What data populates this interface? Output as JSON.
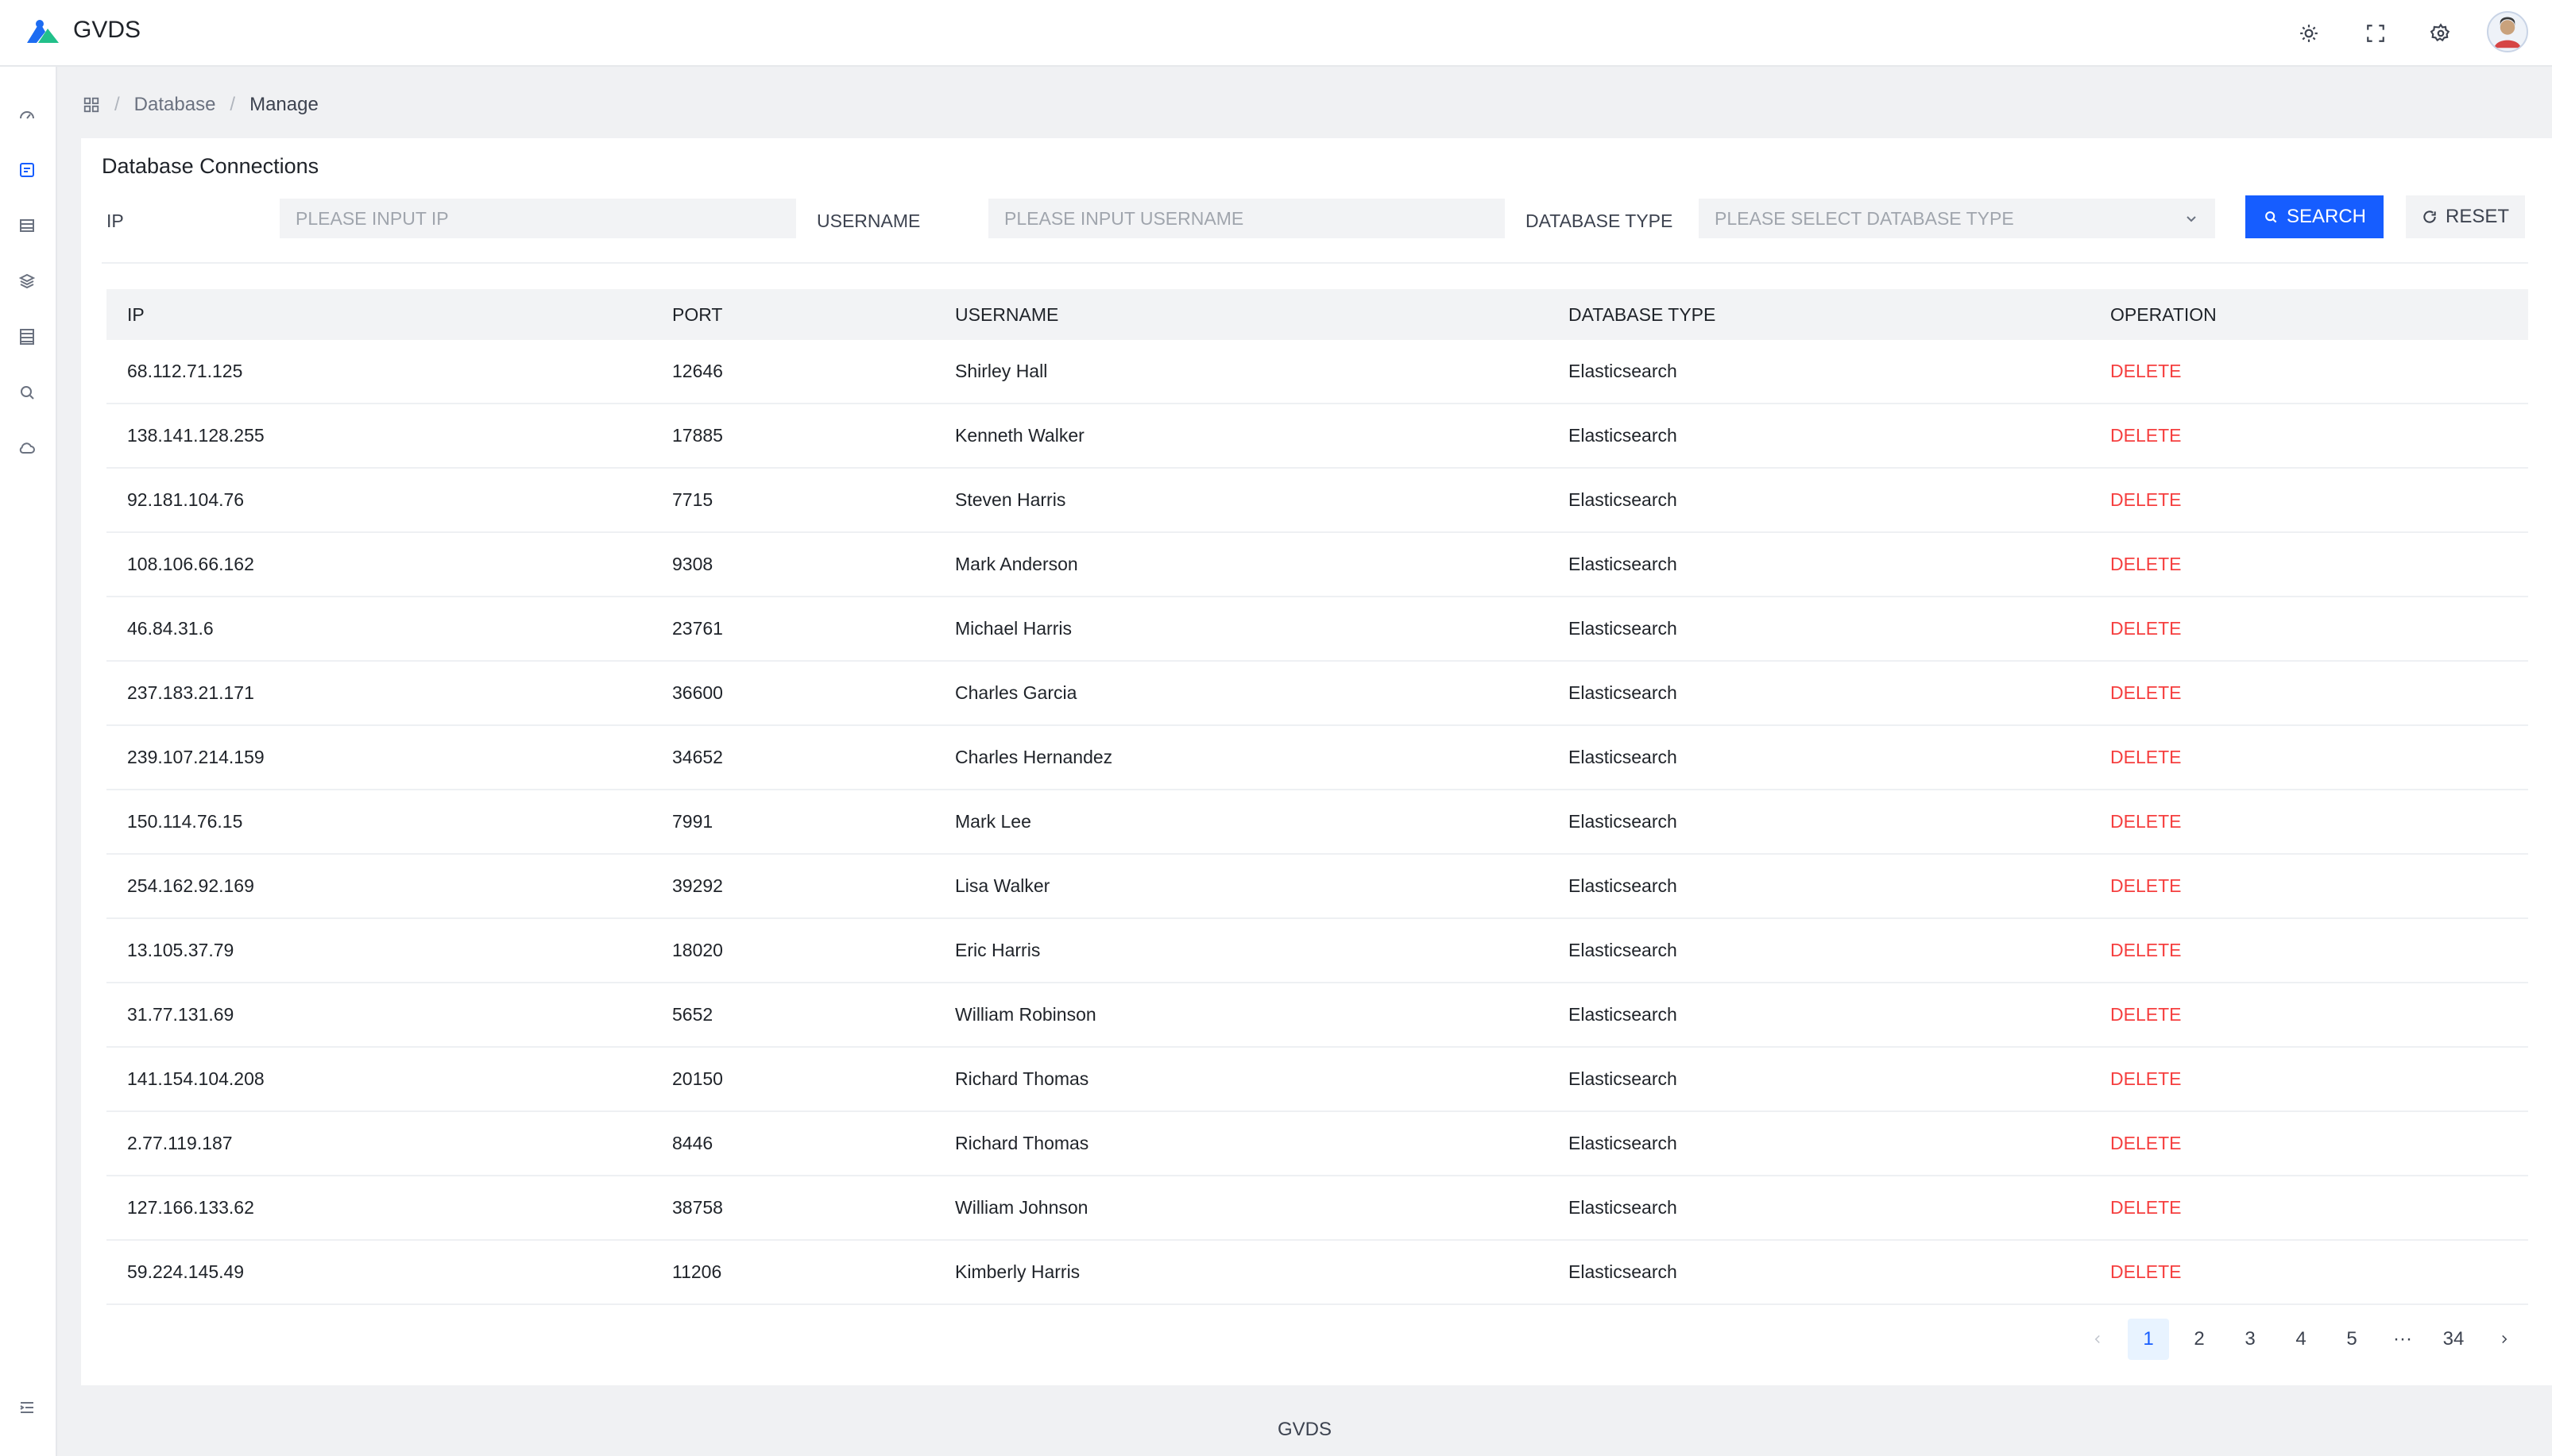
{
  "app": {
    "title": "GVDS"
  },
  "breadcrumb": {
    "items": [
      "Database",
      "Manage"
    ]
  },
  "page": {
    "title": "Database Connections"
  },
  "filters": {
    "ip_label": "IP",
    "ip_placeholder": "PLEASE INPUT IP",
    "username_label": "USERNAME",
    "username_placeholder": "PLEASE INPUT USERNAME",
    "dbtype_label": "DATABASE TYPE",
    "dbtype_placeholder": "PLEASE SELECT DATABASE TYPE",
    "search_label": "SEARCH",
    "reset_label": "RESET"
  },
  "table": {
    "columns": [
      "IP",
      "PORT",
      "USERNAME",
      "DATABASE TYPE",
      "OPERATION"
    ],
    "action_label": "DELETE",
    "rows": [
      {
        "ip": "68.112.71.125",
        "port": "12646",
        "username": "Shirley Hall",
        "type": "Elasticsearch"
      },
      {
        "ip": "138.141.128.255",
        "port": "17885",
        "username": "Kenneth Walker",
        "type": "Elasticsearch"
      },
      {
        "ip": "92.181.104.76",
        "port": "7715",
        "username": "Steven Harris",
        "type": "Elasticsearch"
      },
      {
        "ip": "108.106.66.162",
        "port": "9308",
        "username": "Mark Anderson",
        "type": "Elasticsearch"
      },
      {
        "ip": "46.84.31.6",
        "port": "23761",
        "username": "Michael Harris",
        "type": "Elasticsearch"
      },
      {
        "ip": "237.183.21.171",
        "port": "36600",
        "username": "Charles Garcia",
        "type": "Elasticsearch"
      },
      {
        "ip": "239.107.214.159",
        "port": "34652",
        "username": "Charles Hernandez",
        "type": "Elasticsearch"
      },
      {
        "ip": "150.114.76.15",
        "port": "7991",
        "username": "Mark Lee",
        "type": "Elasticsearch"
      },
      {
        "ip": "254.162.92.169",
        "port": "39292",
        "username": "Lisa Walker",
        "type": "Elasticsearch"
      },
      {
        "ip": "13.105.37.79",
        "port": "18020",
        "username": "Eric Harris",
        "type": "Elasticsearch"
      },
      {
        "ip": "31.77.131.69",
        "port": "5652",
        "username": "William Robinson",
        "type": "Elasticsearch"
      },
      {
        "ip": "141.154.104.208",
        "port": "20150",
        "username": "Richard Thomas",
        "type": "Elasticsearch"
      },
      {
        "ip": "2.77.119.187",
        "port": "8446",
        "username": "Richard Thomas",
        "type": "Elasticsearch"
      },
      {
        "ip": "127.166.133.62",
        "port": "38758",
        "username": "William Johnson",
        "type": "Elasticsearch"
      },
      {
        "ip": "59.224.145.49",
        "port": "11206",
        "username": "Kimberly Harris",
        "type": "Elasticsearch"
      }
    ]
  },
  "pagination": {
    "pages": [
      "1",
      "2",
      "3",
      "4",
      "5"
    ],
    "ellipsis": "···",
    "last": "34",
    "current": "1"
  },
  "footer": {
    "text": "GVDS"
  },
  "colors": {
    "primary": "#165dff",
    "danger": "#f53f3f",
    "background": "#f0f1f3"
  }
}
